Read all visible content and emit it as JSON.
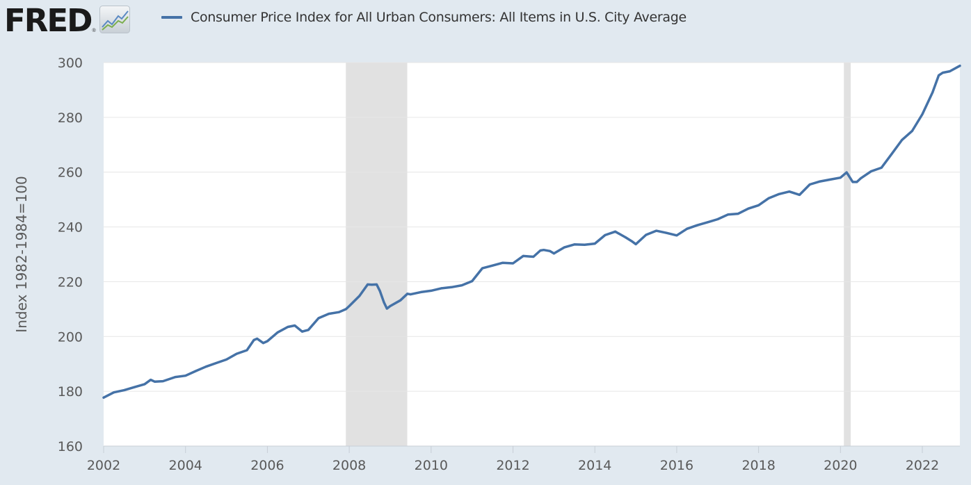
{
  "header": {
    "logo_text": "FRED",
    "logo_registered": "®",
    "legend_label": "Consumer Price Index for All Urban Consumers: All Items in U.S. City Average"
  },
  "chart_data": {
    "type": "line",
    "title": "",
    "xlabel": "",
    "ylabel": "Index 1982-1984=100",
    "xlim": [
      2002.0,
      2022.917
    ],
    "ylim": [
      160,
      300
    ],
    "y_ticks": [
      160,
      180,
      200,
      220,
      240,
      260,
      280,
      300
    ],
    "x_ticks": [
      2002,
      2004,
      2006,
      2008,
      2010,
      2012,
      2014,
      2016,
      2018,
      2020,
      2022
    ],
    "grid": "horizontal",
    "legend_position": "top-left",
    "series": [
      {
        "name": "Consumer Price Index for All Urban Consumers: All Items in U.S. City Average",
        "color": "#4572a7",
        "x": [
          2002.0,
          2002.25,
          2002.5,
          2002.75,
          2003.0,
          2003.15,
          2003.25,
          2003.45,
          2003.75,
          2004.0,
          2004.25,
          2004.5,
          2004.75,
          2005.0,
          2005.25,
          2005.5,
          2005.67,
          2005.75,
          2005.9,
          2006.0,
          2006.25,
          2006.5,
          2006.67,
          2006.85,
          2007.0,
          2007.25,
          2007.5,
          2007.75,
          2007.92,
          2008.0,
          2008.25,
          2008.45,
          2008.55,
          2008.67,
          2008.75,
          2008.85,
          2008.92,
          2009.0,
          2009.25,
          2009.42,
          2009.5,
          2009.75,
          2010.0,
          2010.25,
          2010.5,
          2010.75,
          2011.0,
          2011.25,
          2011.5,
          2011.75,
          2012.0,
          2012.25,
          2012.5,
          2012.67,
          2012.75,
          2012.9,
          2013.0,
          2013.25,
          2013.5,
          2013.75,
          2014.0,
          2014.25,
          2014.5,
          2014.75,
          2014.9,
          2015.0,
          2015.25,
          2015.5,
          2015.75,
          2016.0,
          2016.25,
          2016.5,
          2016.75,
          2017.0,
          2017.25,
          2017.5,
          2017.75,
          2018.0,
          2018.25,
          2018.5,
          2018.75,
          2019.0,
          2019.25,
          2019.5,
          2019.75,
          2020.0,
          2020.15,
          2020.3,
          2020.4,
          2020.5,
          2020.75,
          2021.0,
          2021.25,
          2021.5,
          2021.75,
          2022.0,
          2022.25,
          2022.4,
          2022.5,
          2022.67,
          2022.917
        ],
        "values": [
          177.7,
          179.6,
          180.4,
          181.5,
          182.6,
          184.2,
          183.5,
          183.7,
          185.2,
          185.7,
          187.4,
          189.0,
          190.3,
          191.6,
          193.7,
          195.0,
          198.7,
          199.2,
          197.6,
          198.3,
          201.5,
          203.5,
          204.0,
          201.8,
          202.4,
          206.7,
          208.3,
          208.9,
          210.0,
          211.1,
          214.8,
          219.0,
          218.9,
          219.0,
          216.6,
          212.4,
          210.2,
          211.1,
          213.2,
          215.6,
          215.4,
          216.2,
          216.7,
          217.6,
          218.0,
          218.7,
          220.2,
          224.9,
          225.9,
          226.9,
          226.7,
          229.4,
          229.1,
          231.4,
          231.6,
          231.2,
          230.3,
          232.5,
          233.6,
          233.5,
          233.9,
          237.0,
          238.3,
          236.2,
          234.8,
          233.7,
          237.1,
          238.6,
          237.8,
          236.9,
          239.3,
          240.6,
          241.7,
          242.8,
          244.5,
          244.8,
          246.7,
          247.9,
          250.5,
          252.0,
          252.9,
          251.7,
          255.5,
          256.6,
          257.3,
          257.97,
          259.9,
          256.4,
          256.4,
          257.8,
          260.3,
          261.6,
          266.6,
          271.7,
          275.0,
          281.1,
          289.1,
          295.3,
          296.3,
          296.8,
          298.8
        ]
      }
    ],
    "recessions": [
      {
        "start": 2007.917,
        "end": 2009.417
      },
      {
        "start": 2020.083,
        "end": 2020.25
      }
    ]
  }
}
